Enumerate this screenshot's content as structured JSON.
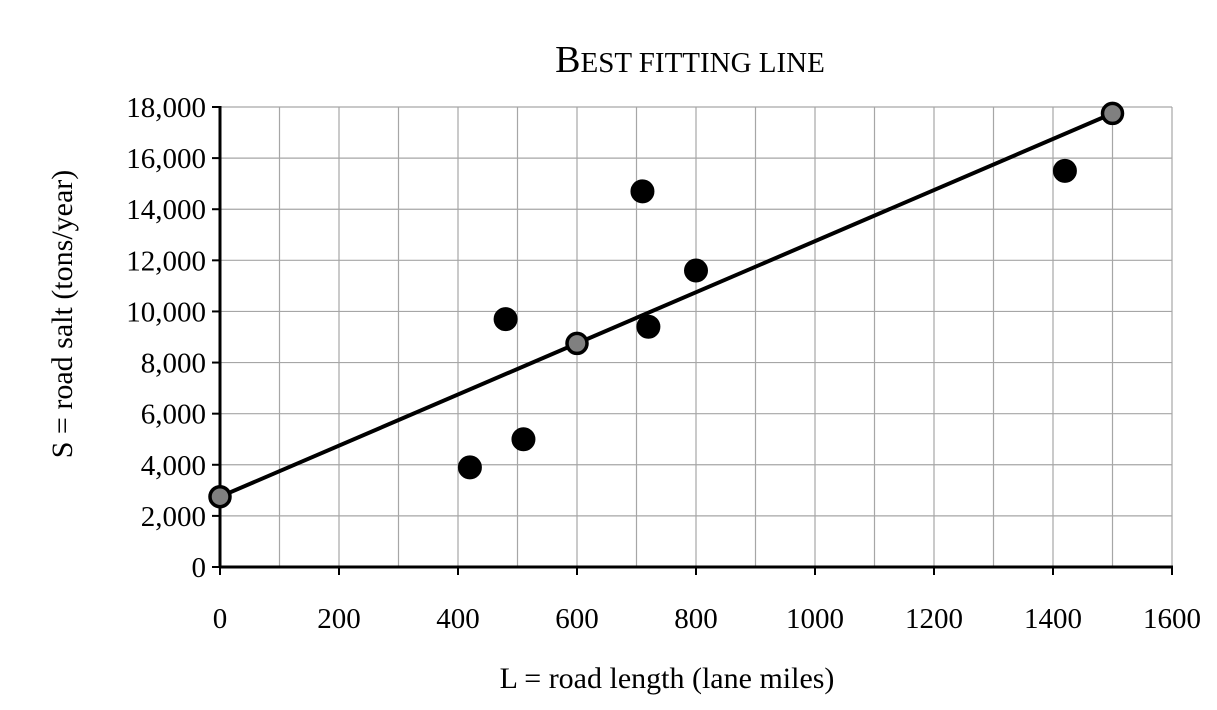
{
  "chart_data": {
    "type": "scatter",
    "title_first": "B",
    "title_rest": "EST FITTING LINE",
    "xlabel": "L = road length (lane miles)",
    "ylabel": "S = road salt (tons/year)",
    "xlim": [
      0,
      1600
    ],
    "ylim": [
      0,
      18000
    ],
    "x_ticks": [
      0,
      200,
      400,
      600,
      800,
      1000,
      1200,
      1400,
      1600
    ],
    "x_tick_labels": [
      "0",
      "200",
      "400",
      "600",
      "800",
      "1000",
      "1200",
      "1400",
      "1600"
    ],
    "y_ticks": [
      0,
      2000,
      4000,
      6000,
      8000,
      10000,
      12000,
      14000,
      16000,
      18000
    ],
    "y_tick_labels": [
      "0",
      "2,000",
      "4,000",
      "6,000",
      "8,000",
      "10,000",
      "12,000",
      "14,000",
      "16,000",
      "18,000"
    ],
    "x_minor_grid_step": 100,
    "y_grid_step": 2000,
    "grid": true,
    "legend": "none",
    "series": [
      {
        "kind": "data_points",
        "marker_color": "#000000",
        "points": [
          {
            "x": 420,
            "y": 3900
          },
          {
            "x": 480,
            "y": 9700
          },
          {
            "x": 510,
            "y": 5000
          },
          {
            "x": 710,
            "y": 14700
          },
          {
            "x": 720,
            "y": 9400
          },
          {
            "x": 800,
            "y": 11600
          },
          {
            "x": 1420,
            "y": 15500
          }
        ]
      },
      {
        "kind": "best_fit_line",
        "line_color": "#000000",
        "marker_color": "#808080",
        "points": [
          {
            "x": 0,
            "y": 2750
          },
          {
            "x": 600,
            "y": 8750
          },
          {
            "x": 1500,
            "y": 17750
          }
        ]
      }
    ]
  }
}
